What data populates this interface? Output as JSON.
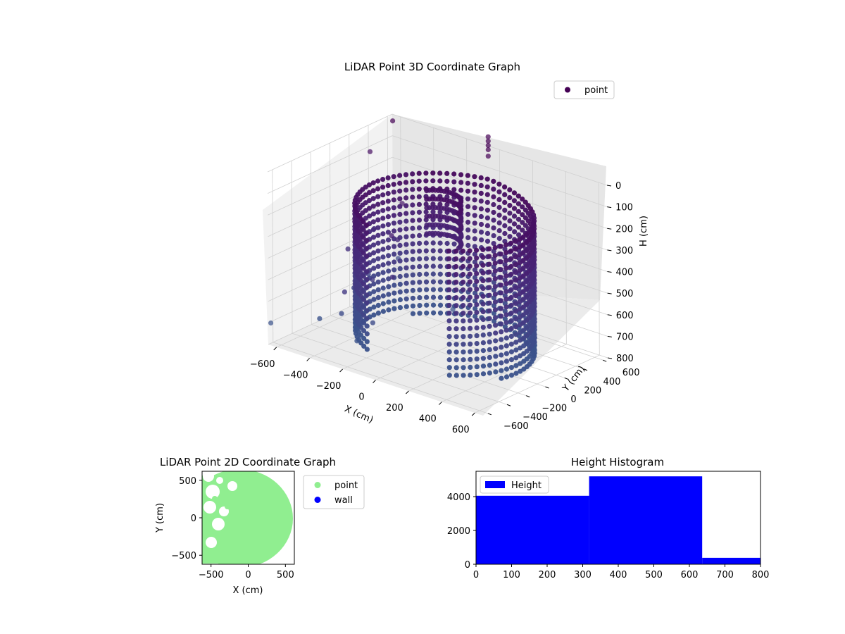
{
  "chart_data": [
    {
      "type": "scatter",
      "projection": "3d",
      "title": "LiDAR Point 3D Coordinate Graph",
      "xlabel": "X (cm)",
      "ylabel": "Y (cm)",
      "zlabel": "H (cm)",
      "xlim": [
        -650,
        650
      ],
      "ylim": [
        -650,
        650
      ],
      "zlim": [
        800,
        0
      ],
      "xticks": [
        "−600",
        "−400",
        "−200",
        "0",
        "200",
        "400",
        "600"
      ],
      "yticks": [
        "−600",
        "−400",
        "−200",
        "0",
        "200",
        "400",
        "600"
      ],
      "zticks": [
        "0",
        "100",
        "200",
        "300",
        "400",
        "500",
        "600",
        "700",
        "800"
      ],
      "legend": {
        "position": "top-right",
        "entries": [
          {
            "label": "point",
            "color": "#440154"
          }
        ]
      },
      "colormap": "viridis",
      "grid": true,
      "series": [
        {
          "name": "point"
        }
      ]
    },
    {
      "type": "scatter",
      "title": "LiDAR Point 2D Coordinate Graph",
      "xlabel": "X (cm)",
      "ylabel": "Y (cm)",
      "xlim": [
        -620,
        620
      ],
      "ylim": [
        -620,
        620
      ],
      "xticks": [
        "−500",
        "0",
        "500"
      ],
      "yticks": [
        "−500",
        "0",
        "500"
      ],
      "legend": {
        "position": "outside-right",
        "entries": [
          {
            "label": "point",
            "color": "#90ee90"
          },
          {
            "label": "wall",
            "color": "#0000ff"
          }
        ]
      },
      "series": [
        {
          "name": "point",
          "color": "#90ee90"
        },
        {
          "name": "wall",
          "color": "#0000ff"
        }
      ]
    },
    {
      "type": "bar",
      "subtype": "histogram",
      "title": "Height Histogram",
      "xlim": [
        0,
        800
      ],
      "ylim": [
        0,
        5500
      ],
      "xticks": [
        "0",
        "100",
        "200",
        "300",
        "400",
        "500",
        "600",
        "700",
        "800"
      ],
      "yticks": [
        "0",
        "2000",
        "4000"
      ],
      "bins": [
        {
          "start": 0,
          "end": 318,
          "count": 4050
        },
        {
          "start": 318,
          "end": 636,
          "count": 5200
        },
        {
          "start": 636,
          "end": 800,
          "count": 380
        }
      ],
      "legend": {
        "position": "top-left",
        "entries": [
          {
            "label": "Height",
            "color": "#0000ff"
          }
        ]
      },
      "series": [
        {
          "name": "Height",
          "color": "#0000ff"
        }
      ]
    }
  ]
}
